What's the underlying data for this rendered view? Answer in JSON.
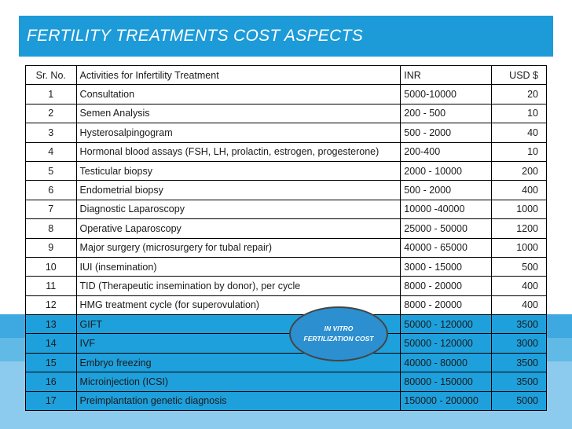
{
  "title": "FERTILITY TREATMENTS COST ASPECTS",
  "table": {
    "headers": [
      "Sr. No.",
      "Activities  for Infertility Treatment",
      "INR",
      "USD $"
    ],
    "rows": [
      [
        "1",
        "Consultation",
        "5000-10000",
        "20"
      ],
      [
        "2",
        "Semen Analysis",
        "200 - 500",
        "10"
      ],
      [
        "3",
        "Hysterosalpingogram",
        "500 - 2000",
        "40"
      ],
      [
        "4",
        "Hormonal blood assays (FSH, LH, prolactin, estrogen, progesterone)",
        "200-400",
        "10"
      ],
      [
        "5",
        "Testicular biopsy",
        "2000 - 10000",
        "200"
      ],
      [
        "6",
        "Endometrial biopsy",
        "500 - 2000",
        "400"
      ],
      [
        "7",
        "Diagnostic Laparoscopy",
        "10000  -40000",
        "1000"
      ],
      [
        "8",
        "Operative Laparoscopy",
        "25000 - 50000",
        "1200"
      ],
      [
        "9",
        "Major surgery (microsurgery for tubal repair)",
        "40000 - 65000",
        "1000"
      ],
      [
        "10",
        "IUI (insemination)",
        "3000 - 15000",
        "500"
      ],
      [
        "11",
        "TID (Therapeutic insemination by donor), per cycle",
        "8000 - 20000",
        "400"
      ],
      [
        "12",
        "HMG treatment cycle (for superovulation)",
        "8000 - 20000",
        "400"
      ],
      [
        "13",
        "GIFT",
        "50000 - 120000",
        "3500"
      ],
      [
        "14",
        "IVF",
        "50000 - 120000",
        "3000"
      ],
      [
        "15",
        "Embryo freezing",
        "40000 - 80000",
        "3500"
      ],
      [
        "16",
        "Microinjection (ICSI)",
        "80000 - 150000",
        "3500"
      ],
      [
        "17",
        "Preimplantation genetic diagnosis",
        "150000 - 200000",
        "5000"
      ]
    ]
  },
  "callout": {
    "line1": "IN VITRO",
    "line2": "FERTILIZATION COST"
  },
  "colors": {
    "title_bar": "#1c9bd8",
    "highlight_rows": "#1ea0dc",
    "bubble": "#2b8fd0"
  }
}
